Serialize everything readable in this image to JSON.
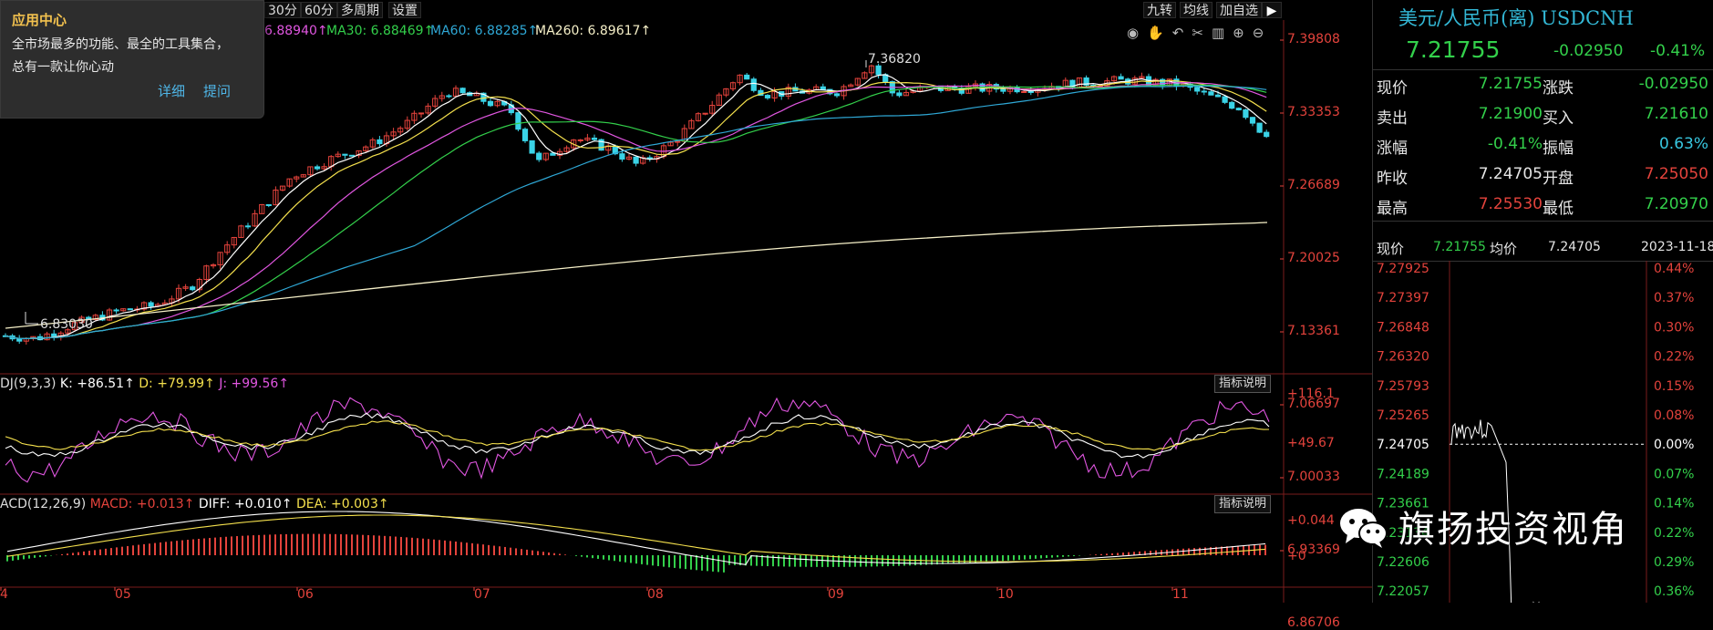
{
  "toolbar": {
    "period_30": "30分",
    "period_60": "60分",
    "multi_period": "多周期",
    "settings": "设置",
    "jiuzhuan": "九转",
    "ma_line": "均线",
    "watchlist": "加自选"
  },
  "ma_values": {
    "ma_first": "6.88940↑",
    "ma30": "MA30: 6.88469↑",
    "ma60": "MA60: 6.88285↑",
    "ma260": "MA260: 6.89617↑"
  },
  "annotations": {
    "high": "7.36820",
    "low": "6.83030",
    "overlay_text": "内日"
  },
  "price_axis": [
    "7.39808",
    "7.33353",
    "7.26689",
    "7.20025",
    "7.13361",
    "7.06697",
    "7.00033",
    "6.93369",
    "6.86706"
  ],
  "kdj": {
    "name": "DJ(9,3,3)",
    "k": "K: +86.51↑",
    "d": "D: +79.99↑",
    "j": "J: +99.56↑",
    "axis_top": "+116.1",
    "axis_mid": "+49.67",
    "explain": "指标说明"
  },
  "macd": {
    "name": "ACD(12,26,9)",
    "macd": "MACD: +0.013↑",
    "diff": "DIFF: +0.010↑",
    "dea": "DEA: +0.003↑",
    "axis_top": "+0.044",
    "axis_zero": "+0",
    "explain": "指标说明"
  },
  "time_axis": [
    "4",
    "05",
    "06",
    "07",
    "08",
    "09",
    "10",
    "11"
  ],
  "popup": {
    "title": "应用中心",
    "line1": "全市场最多的功能、最全的工具集合，",
    "line2": "总有一款让你心动",
    "detail": "详细",
    "hint": "提问"
  },
  "quote": {
    "name": "美元/人民币(离) USDCNH",
    "price": "7.21755",
    "change": "-0.02950",
    "change_pct": "-0.41%",
    "rows": [
      {
        "l1": "现价",
        "v1": "7.21755",
        "c1": "green",
        "l2": "涨跌",
        "v2": "-0.02950",
        "c2": "green"
      },
      {
        "l1": "卖出",
        "v1": "7.21900",
        "c1": "green",
        "l2": "买入",
        "v2": "7.21610",
        "c2": "green"
      },
      {
        "l1": "涨幅",
        "v1": "-0.41%",
        "c1": "green",
        "l2": "振幅",
        "v2": "0.63%",
        "c2": "cyan"
      },
      {
        "l1": "昨收",
        "v1": "7.24705",
        "c1": "white",
        "l2": "开盘",
        "v2": "7.25050",
        "c2": "red"
      },
      {
        "l1": "最高",
        "v1": "7.25530",
        "c1": "red",
        "l2": "最低",
        "v2": "7.20970",
        "c2": "green"
      }
    ]
  },
  "intraday": {
    "now_label": "现价",
    "now_value": "7.21755",
    "avg_label": "均价",
    "avg_value": "7.24705",
    "date": "2023-11-18",
    "left_axis": [
      "7.27925",
      "7.27397",
      "7.26848",
      "7.26320",
      "7.25793",
      "7.25265",
      "7.24705",
      "7.24189",
      "7.23661",
      "7.23134",
      "7.22606",
      "7.22057"
    ],
    "right_axis": [
      "0.44%",
      "0.37%",
      "0.30%",
      "0.22%",
      "0.15%",
      "0.08%",
      "0.00%",
      "0.07%",
      "0.14%",
      "0.22%",
      "0.29%",
      "0.36%"
    ]
  },
  "watermark": "旗扬投资视角",
  "colors": {
    "up": "#e4433c",
    "down": "#3ad3e6",
    "green": "#33d04b",
    "ma5": "#ffffff",
    "ma10": "#f4e04d",
    "ma20": "#e056e0",
    "ma30": "#33d04b",
    "ma60": "#2fa8d6",
    "ma260": "#f6f0c8"
  }
}
